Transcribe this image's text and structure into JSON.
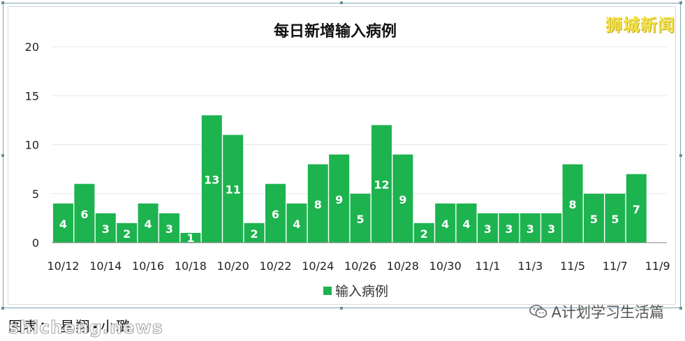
{
  "brand": "狮城新闻",
  "caption": "图表： 星翔•小璐",
  "watermark_site": "shicheng.news",
  "watermark_account": "A计划学习生活篇",
  "colors": {
    "bar": "#1db34f",
    "bar_label": "#ffffff",
    "grid": "#e6e6e6",
    "axis": "#7f7f7f"
  },
  "chart_data": {
    "type": "bar",
    "title": "每日新增输入病例",
    "xlabel": "",
    "ylabel": "",
    "ylim": [
      0,
      20
    ],
    "yticks": [
      0,
      5,
      10,
      15,
      20
    ],
    "legend": "bottom-center",
    "categories": [
      "10/12",
      "10/13",
      "10/14",
      "10/15",
      "10/16",
      "10/17",
      "10/18",
      "10/19",
      "10/20",
      "10/21",
      "10/22",
      "10/23",
      "10/24",
      "10/25",
      "10/26",
      "10/27",
      "10/28",
      "10/29",
      "10/30",
      "10/31",
      "11/1",
      "11/2",
      "11/3",
      "11/4",
      "11/5",
      "11/6",
      "11/7",
      "11/8",
      "11/9"
    ],
    "xtick_labels": [
      "10/12",
      "10/14",
      "10/16",
      "10/18",
      "10/20",
      "10/22",
      "10/24",
      "10/26",
      "10/28",
      "10/30",
      "11/1",
      "11/3",
      "11/5",
      "11/7",
      "11/9"
    ],
    "series": [
      {
        "name": "输入病例",
        "values": [
          4,
          6,
          3,
          2,
          4,
          3,
          1,
          13,
          11,
          2,
          6,
          4,
          8,
          9,
          5,
          12,
          9,
          2,
          4,
          4,
          3,
          3,
          3,
          3,
          8,
          5,
          5,
          7,
          null
        ]
      }
    ]
  }
}
